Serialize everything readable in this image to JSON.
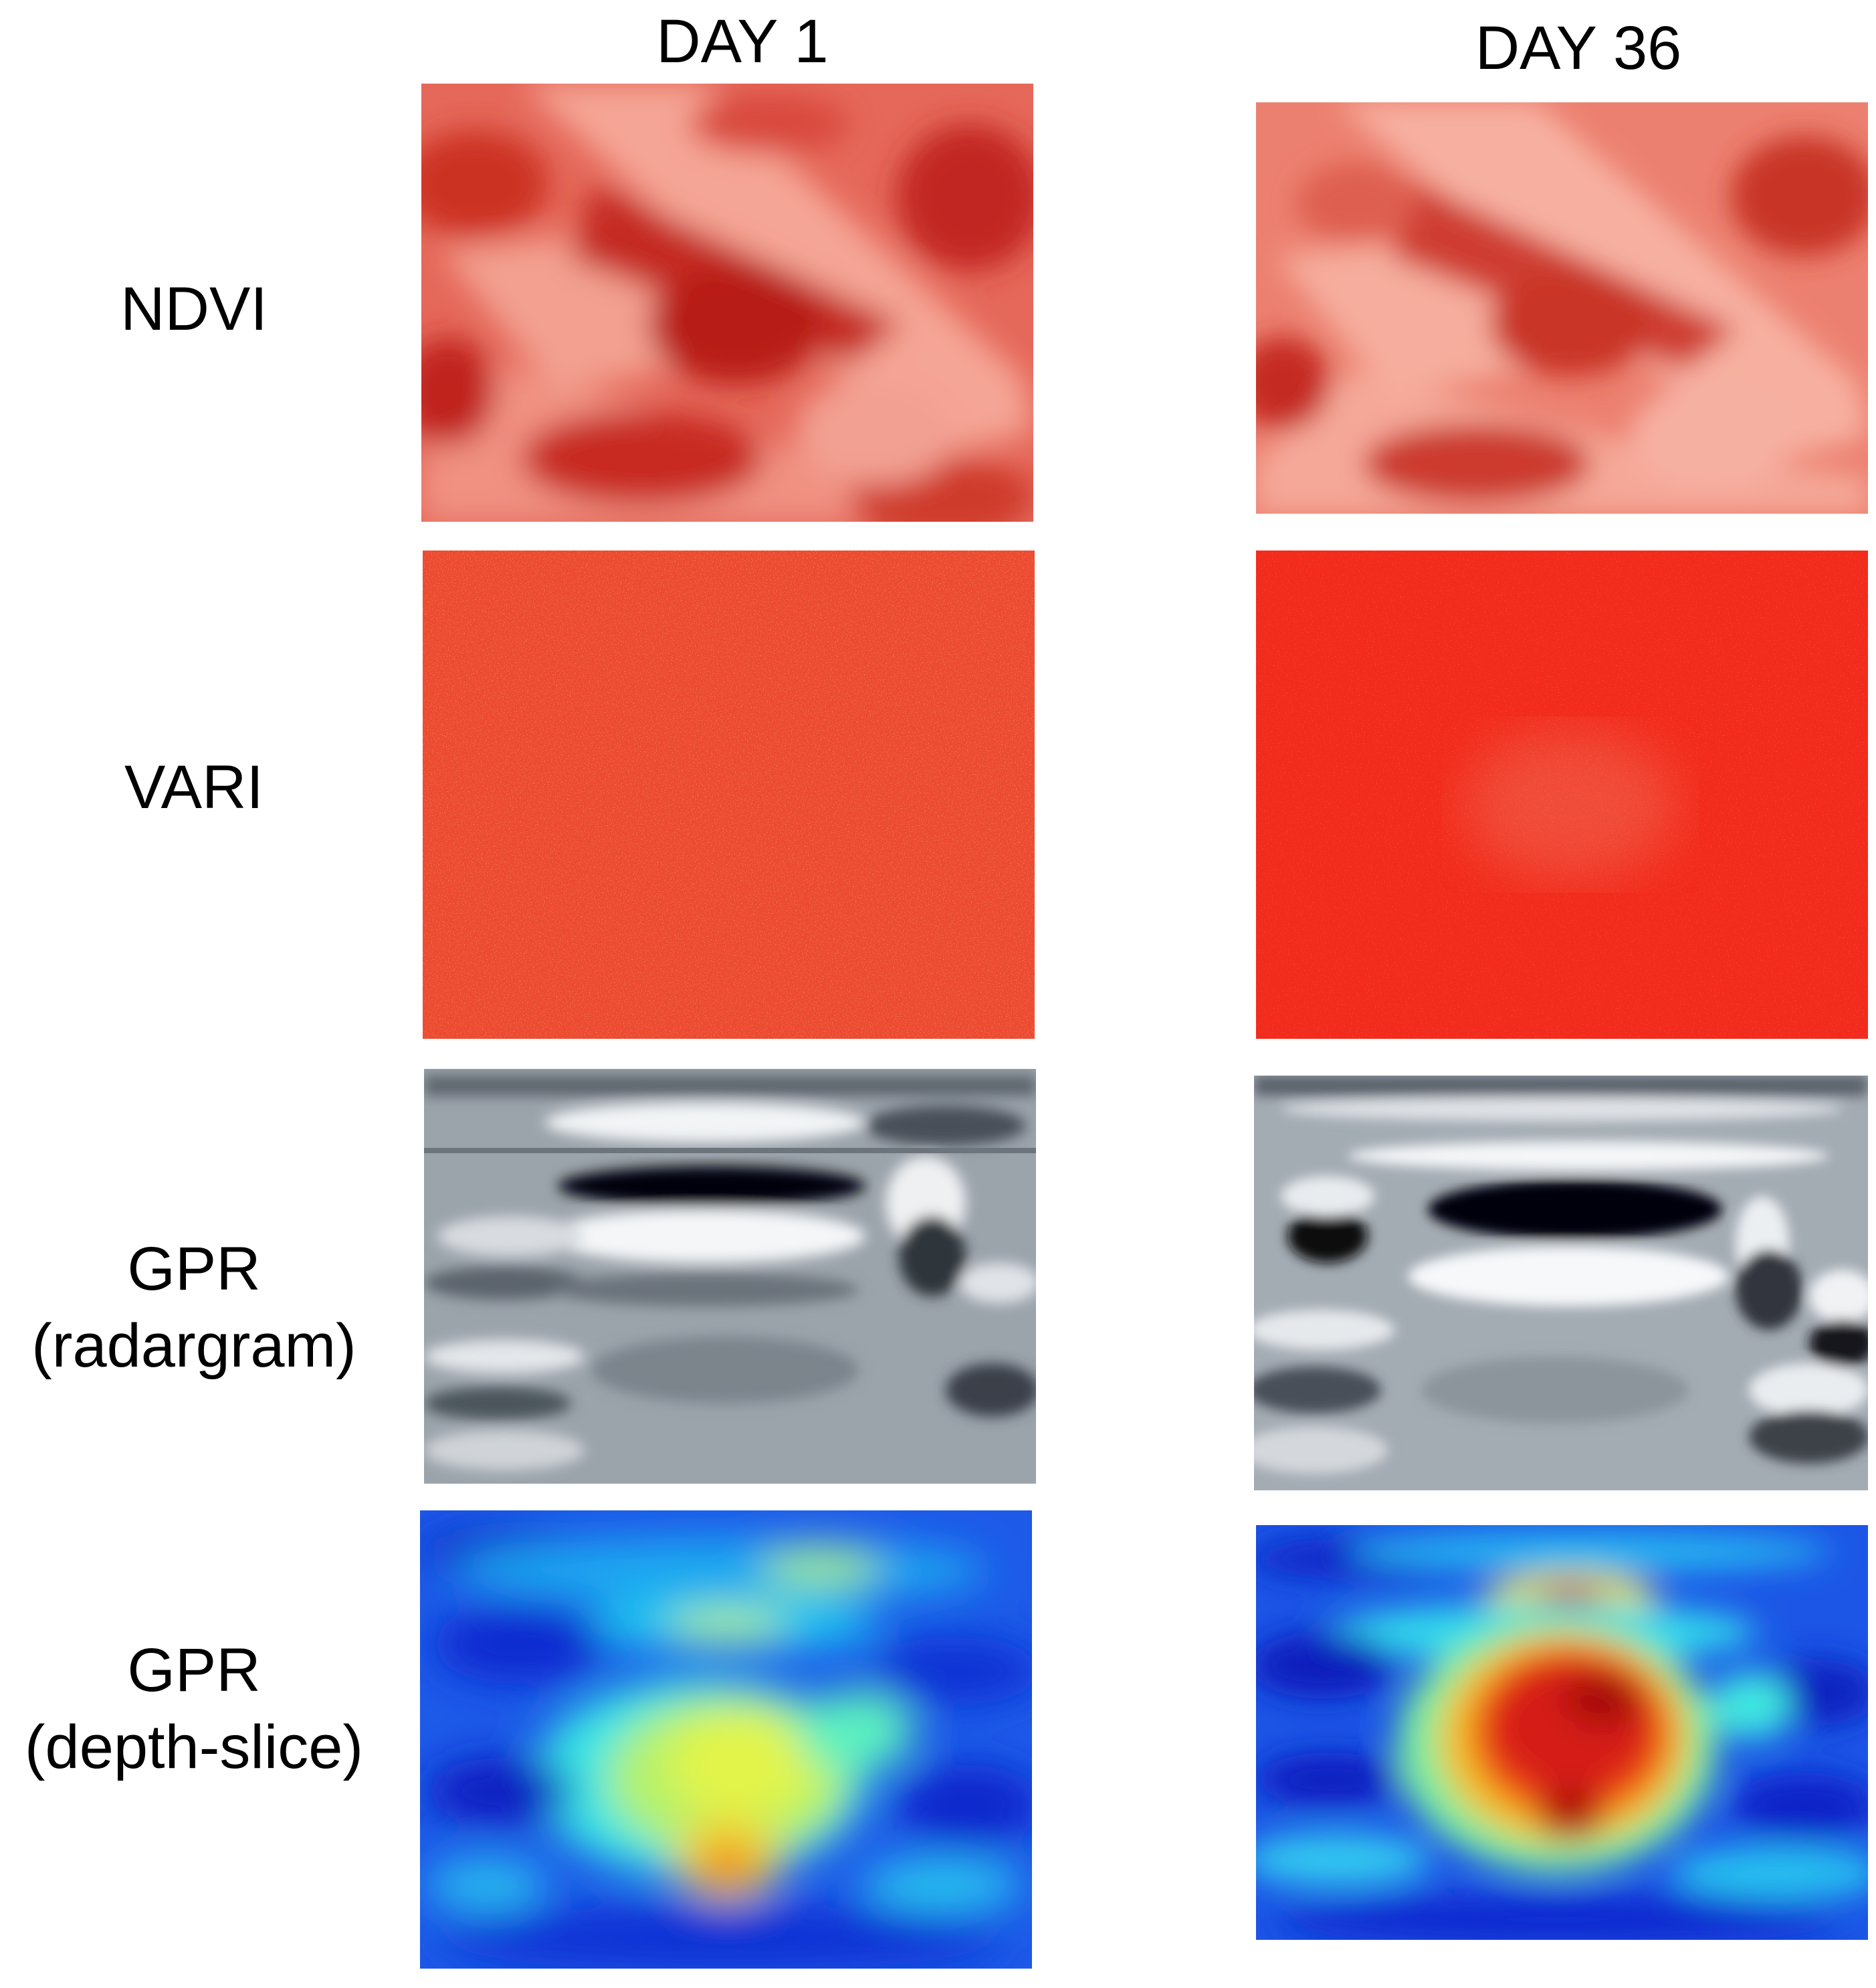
{
  "columns": [
    {
      "title": "DAY 1"
    },
    {
      "title": "DAY 36"
    }
  ],
  "rows": [
    {
      "label_line1": "NDVI",
      "label_line2": ""
    },
    {
      "label_line1": "VARI",
      "label_line2": ""
    },
    {
      "label_line1": "GPR",
      "label_line2": "(radargram)"
    },
    {
      "label_line1": "GPR",
      "label_line2": "(depth-slice)"
    }
  ],
  "colors": {
    "ndvi_light": "#f4a090",
    "ndvi_dark": "#c0201a",
    "vari_day1": "#ef4a30",
    "vari_day36": "#f42a1c",
    "gpr_gray": "#9aa2aa",
    "jet_low": "#0a3ad8",
    "jet_high": "#e61e12"
  }
}
